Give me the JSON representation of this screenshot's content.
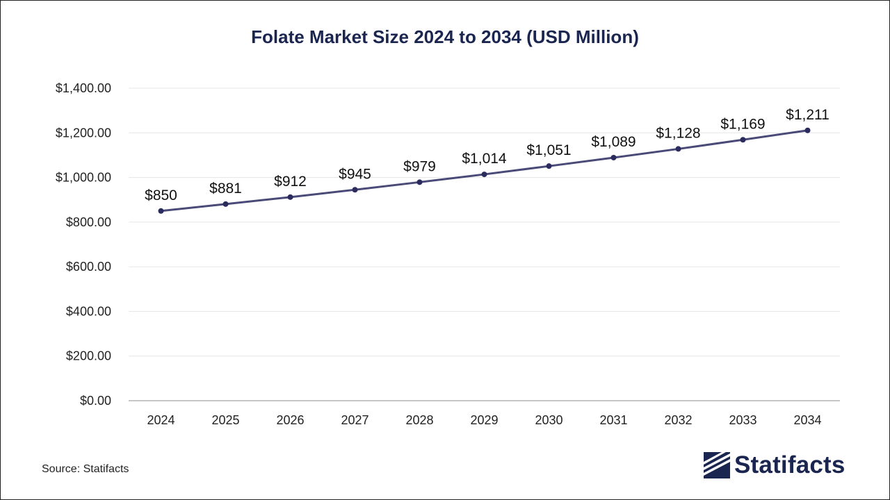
{
  "colors": {
    "line": "#4a4a78",
    "marker": "#2b2b5e",
    "grid": "#e6e6e6",
    "axis": "#b3b3b3",
    "title": "#1a2550",
    "brand": "#1a2550"
  },
  "chart_data": {
    "type": "line",
    "title": "Folate Market Size 2024 to 2034 (USD Million)",
    "xlabel": "",
    "ylabel": "",
    "categories": [
      "2024",
      "2025",
      "2026",
      "2027",
      "2028",
      "2029",
      "2030",
      "2031",
      "2032",
      "2033",
      "2034"
    ],
    "series": [
      {
        "values": [
          850,
          881,
          912,
          945,
          979,
          1014,
          1051,
          1089,
          1128,
          1169,
          1211
        ],
        "data_labels": [
          "$850",
          "$881",
          "$912",
          "$945",
          "$979",
          "$1,014",
          "$1,051",
          "$1,089",
          "$1,128",
          "$1,169",
          "$1,211"
        ]
      }
    ],
    "ylim": [
      0,
      1400
    ],
    "y_ticks": [
      0,
      200,
      400,
      600,
      800,
      1000,
      1200,
      1400
    ],
    "y_tick_labels": [
      "$0.00",
      "$200.00",
      "$400.00",
      "$600.00",
      "$800.00",
      "$1,000.00",
      "$1,200.00",
      "$1,400.00"
    ],
    "grid": true,
    "legend": "none"
  },
  "footer": {
    "source": "Source: Statifacts",
    "brand_name": "Statifacts"
  },
  "icons": {
    "brand_logo": "statifacts-logo-icon"
  }
}
